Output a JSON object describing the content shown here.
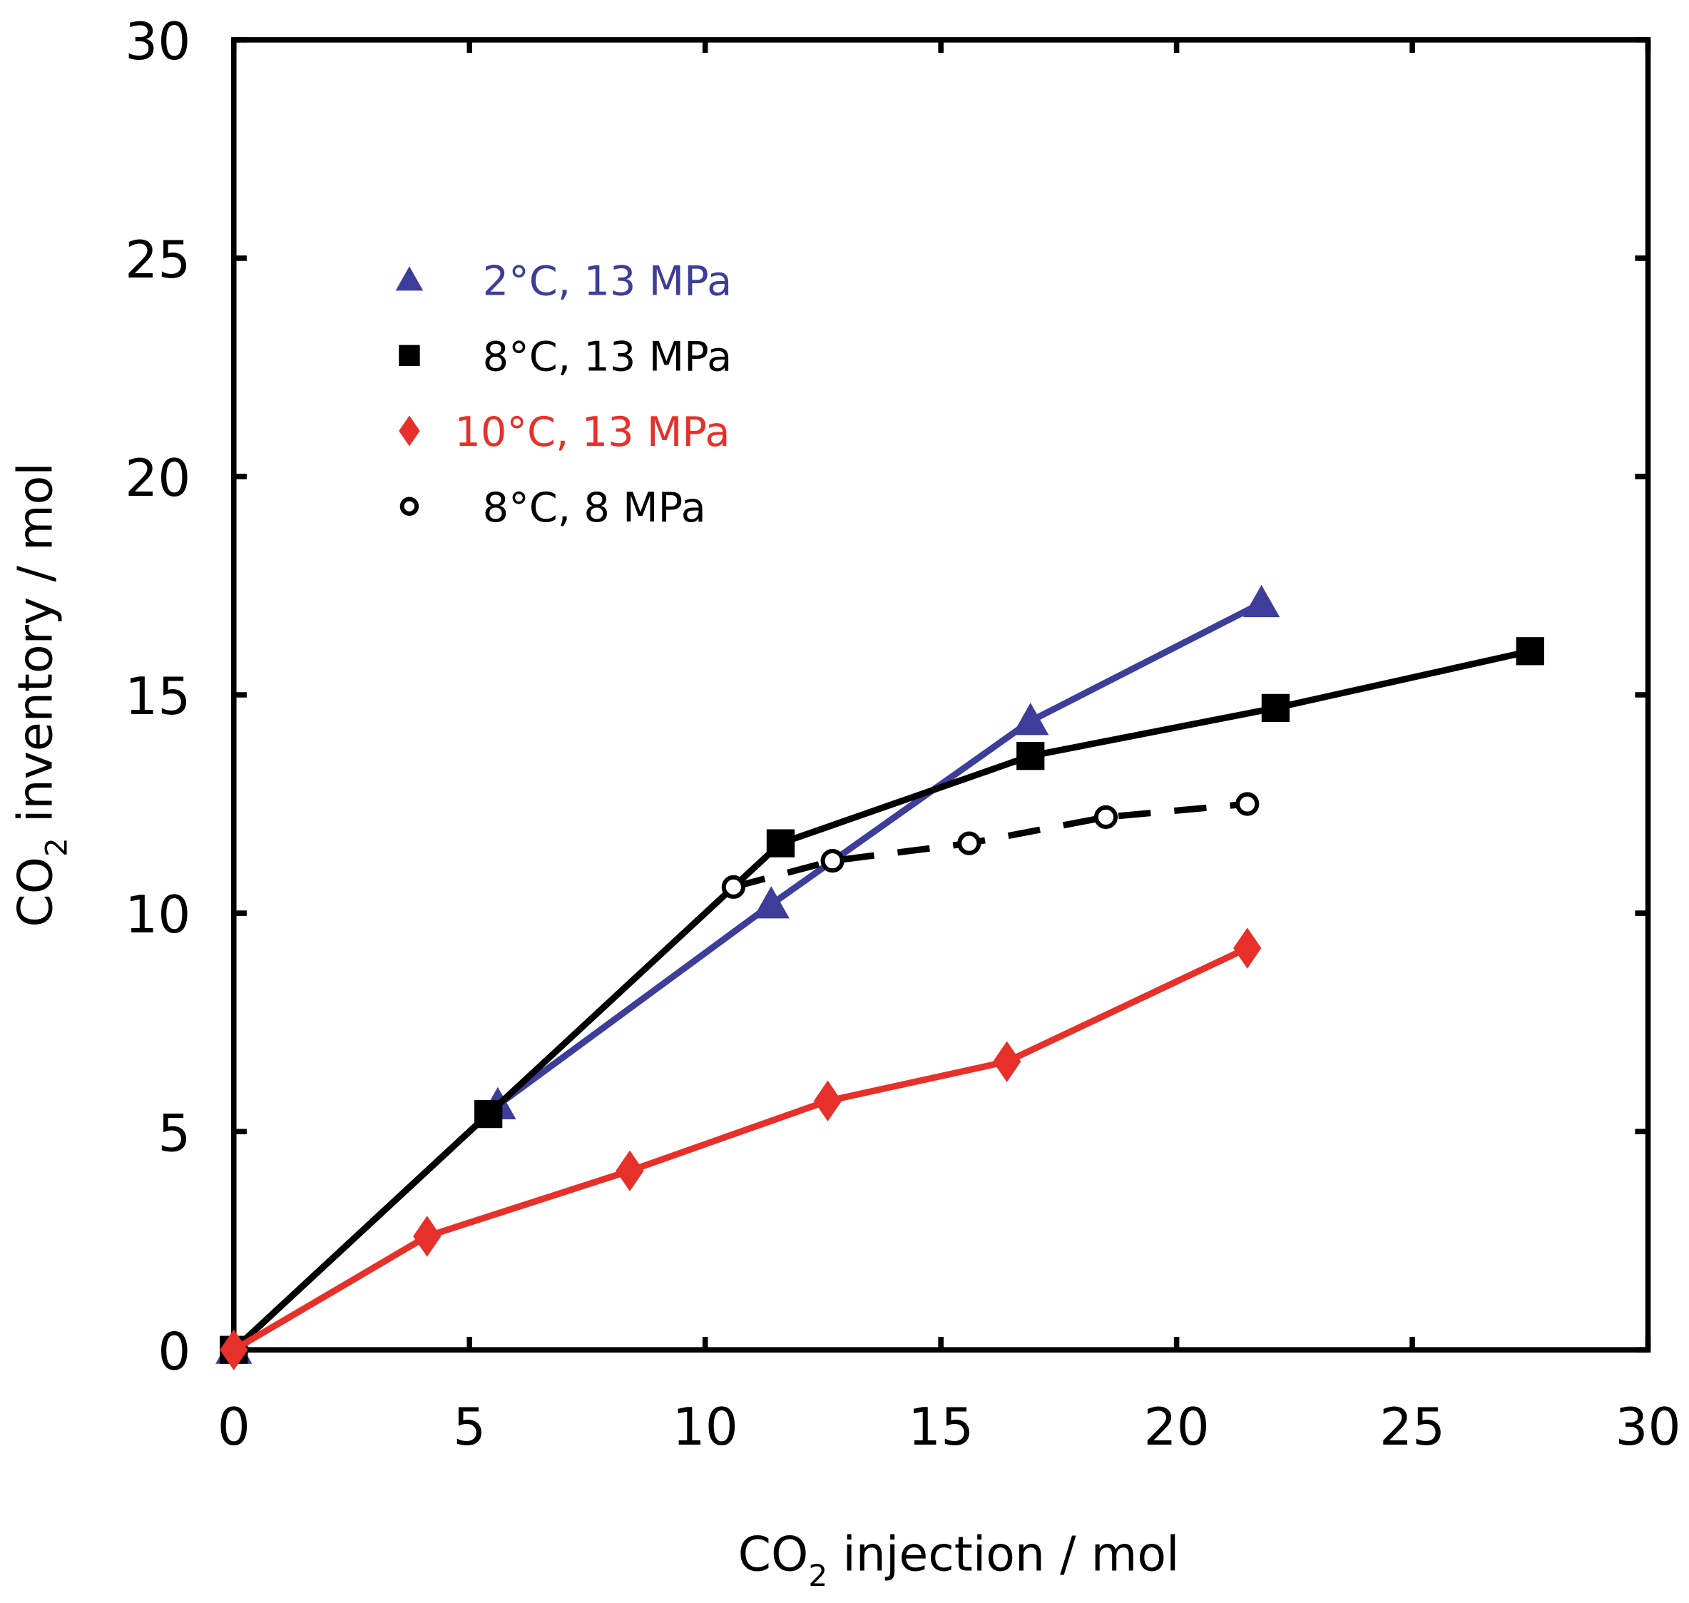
{
  "chart_data": {
    "type": "line",
    "title": "",
    "xlabel": {
      "main": "CO",
      "sub": "2",
      "rest": " injection / mol"
    },
    "ylabel": {
      "main": "CO",
      "sub": "2",
      "rest": " inventory / mol"
    },
    "xlim": [
      0,
      30
    ],
    "ylim": [
      0,
      30
    ],
    "xticks": [
      0,
      5,
      10,
      15,
      20,
      25,
      30
    ],
    "yticks": [
      0,
      5,
      10,
      15,
      20,
      25,
      30
    ],
    "grid": false,
    "legend_position": "top-left",
    "series": [
      {
        "name": "2°C, 13 MPa",
        "color": "#3d3d9a",
        "marker": "triangle",
        "dash": false,
        "x": [
          0,
          5.6,
          11.4,
          16.9,
          21.8
        ],
        "y": [
          0,
          5.6,
          10.2,
          14.4,
          17.1
        ]
      },
      {
        "name": "8°C, 13 MPa",
        "color": "#000000",
        "marker": "square",
        "dash": false,
        "x": [
          0,
          5.4,
          11.6,
          16.9,
          22.1,
          27.5
        ],
        "y": [
          0,
          5.4,
          11.6,
          13.6,
          14.7,
          16.0
        ]
      },
      {
        "name": "10°C, 13 MPa",
        "color": "#e8302a",
        "marker": "diamond",
        "dash": false,
        "x": [
          0,
          4.1,
          8.4,
          12.6,
          16.4,
          21.5
        ],
        "y": [
          0,
          2.6,
          4.1,
          5.7,
          6.6,
          9.2
        ]
      },
      {
        "name": "8°C,  8 MPa",
        "color": "#000000",
        "marker": "open-circle",
        "dash": true,
        "x": [
          10.6,
          12.7,
          15.6,
          18.5,
          21.5
        ],
        "y": [
          10.6,
          11.2,
          11.6,
          12.2,
          12.5
        ]
      }
    ]
  }
}
